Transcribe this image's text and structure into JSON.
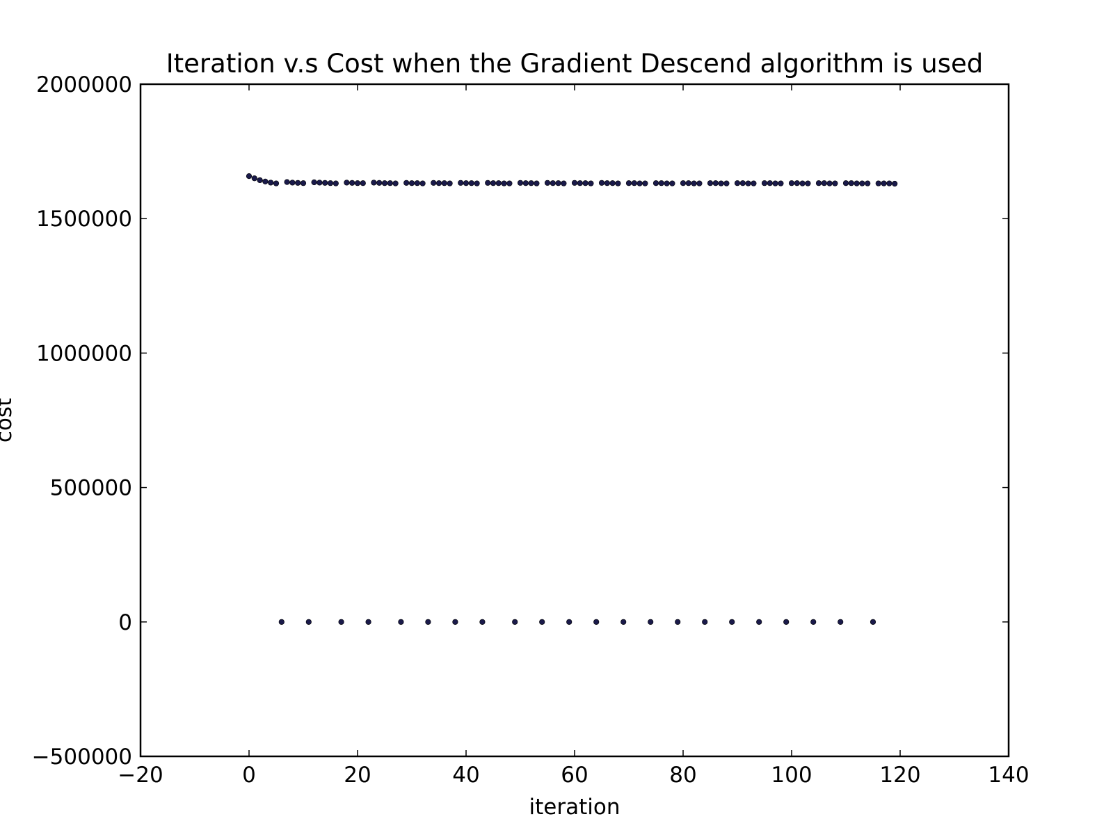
{
  "chart_data": {
    "type": "scatter",
    "title": "Iteration v.s Cost when the Gradient Descend algorithm is used",
    "xlabel": "iteration",
    "ylabel": "cost",
    "xlim": [
      -20,
      140
    ],
    "ylim": [
      -500000,
      2000000
    ],
    "x_ticks": [
      -20,
      0,
      20,
      40,
      60,
      80,
      100,
      120,
      140
    ],
    "x_tick_labels": [
      "−20",
      "0",
      "20",
      "40",
      "60",
      "80",
      "100",
      "120",
      "140"
    ],
    "y_ticks": [
      -500000,
      0,
      500000,
      1000000,
      1500000,
      2000000
    ],
    "y_tick_labels": [
      "−500000",
      "0",
      "500000",
      "1000000",
      "1500000",
      "2000000"
    ],
    "grid": false,
    "marker_color": "#1a1a4a",
    "upper_points": [
      [
        0,
        1658000
      ],
      [
        1,
        1650000
      ],
      [
        2,
        1643000
      ],
      [
        3,
        1638000
      ],
      [
        4,
        1634000
      ],
      [
        5,
        1631000
      ],
      [
        7,
        1636000
      ],
      [
        8,
        1634000
      ],
      [
        9,
        1633000
      ],
      [
        10,
        1632000
      ],
      [
        12,
        1635000
      ],
      [
        13,
        1634000
      ],
      [
        14,
        1633000
      ],
      [
        15,
        1632000
      ],
      [
        16,
        1631000
      ],
      [
        18,
        1634000
      ],
      [
        19,
        1633000
      ],
      [
        20,
        1632000
      ],
      [
        21,
        1632000
      ],
      [
        23,
        1634000
      ],
      [
        24,
        1633000
      ],
      [
        25,
        1632000
      ],
      [
        26,
        1632000
      ],
      [
        27,
        1631000
      ],
      [
        29,
        1633000
      ],
      [
        30,
        1632000
      ],
      [
        31,
        1632000
      ],
      [
        32,
        1631000
      ],
      [
        34,
        1633000
      ],
      [
        35,
        1632000
      ],
      [
        36,
        1632000
      ],
      [
        37,
        1631000
      ],
      [
        39,
        1633000
      ],
      [
        40,
        1632000
      ],
      [
        41,
        1632000
      ],
      [
        42,
        1631000
      ],
      [
        44,
        1633000
      ],
      [
        45,
        1632000
      ],
      [
        46,
        1632000
      ],
      [
        47,
        1631000
      ],
      [
        48,
        1631000
      ],
      [
        50,
        1633000
      ],
      [
        51,
        1632000
      ],
      [
        52,
        1632000
      ],
      [
        53,
        1631000
      ],
      [
        55,
        1633000
      ],
      [
        56,
        1632000
      ],
      [
        57,
        1632000
      ],
      [
        58,
        1631000
      ],
      [
        60,
        1633000
      ],
      [
        61,
        1632000
      ],
      [
        62,
        1632000
      ],
      [
        63,
        1631000
      ],
      [
        65,
        1633000
      ],
      [
        66,
        1632000
      ],
      [
        67,
        1632000
      ],
      [
        68,
        1631000
      ],
      [
        70,
        1632000
      ],
      [
        71,
        1632000
      ],
      [
        72,
        1631000
      ],
      [
        73,
        1631000
      ],
      [
        75,
        1632000
      ],
      [
        76,
        1632000
      ],
      [
        77,
        1631000
      ],
      [
        78,
        1631000
      ],
      [
        80,
        1632000
      ],
      [
        81,
        1632000
      ],
      [
        82,
        1631000
      ],
      [
        83,
        1631000
      ],
      [
        85,
        1632000
      ],
      [
        86,
        1632000
      ],
      [
        87,
        1631000
      ],
      [
        88,
        1631000
      ],
      [
        90,
        1632000
      ],
      [
        91,
        1632000
      ],
      [
        92,
        1631000
      ],
      [
        93,
        1631000
      ],
      [
        95,
        1632000
      ],
      [
        96,
        1632000
      ],
      [
        97,
        1631000
      ],
      [
        98,
        1631000
      ],
      [
        100,
        1632000
      ],
      [
        101,
        1632000
      ],
      [
        102,
        1631000
      ],
      [
        103,
        1631000
      ],
      [
        105,
        1632000
      ],
      [
        106,
        1632000
      ],
      [
        107,
        1631000
      ],
      [
        108,
        1631000
      ],
      [
        110,
        1632000
      ],
      [
        111,
        1632000
      ],
      [
        112,
        1631000
      ],
      [
        113,
        1631000
      ],
      [
        114,
        1631000
      ],
      [
        116,
        1631000
      ],
      [
        117,
        1631000
      ],
      [
        118,
        1631000
      ],
      [
        119,
        1630000
      ]
    ],
    "lower_points": [
      [
        6,
        0
      ],
      [
        11,
        0
      ],
      [
        17,
        0
      ],
      [
        22,
        0
      ],
      [
        28,
        0
      ],
      [
        33,
        0
      ],
      [
        38,
        0
      ],
      [
        43,
        0
      ],
      [
        49,
        0
      ],
      [
        54,
        0
      ],
      [
        59,
        0
      ],
      [
        64,
        0
      ],
      [
        69,
        0
      ],
      [
        74,
        0
      ],
      [
        79,
        0
      ],
      [
        84,
        0
      ],
      [
        89,
        0
      ],
      [
        94,
        0
      ],
      [
        99,
        0
      ],
      [
        104,
        0
      ],
      [
        109,
        0
      ],
      [
        115,
        0
      ]
    ]
  }
}
